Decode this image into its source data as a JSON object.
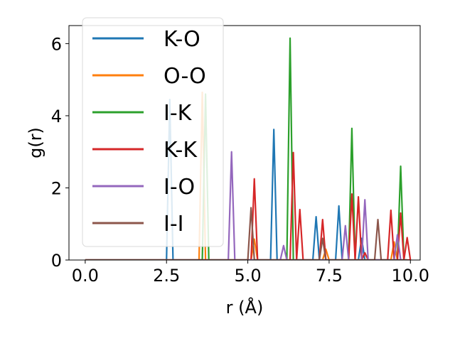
{
  "chart_data": {
    "type": "line",
    "title": "",
    "xlabel": "r (Å)",
    "ylabel": "g(r)",
    "xlim": [
      -0.5,
      10.3
    ],
    "ylim": [
      0,
      6.5
    ],
    "x_ticks": [
      0.0,
      2.5,
      5.0,
      7.5,
      10.0
    ],
    "x_tick_labels": [
      "0.0",
      "2.5",
      "5.0",
      "7.5",
      "10.0"
    ],
    "y_ticks": [
      0,
      2,
      4,
      6
    ],
    "y_tick_labels": [
      "0",
      "2",
      "4",
      "6"
    ],
    "grid": false,
    "legend_position": "upper-left",
    "x_range": [
      0.0,
      9.9
    ],
    "peak_halfwidth": 0.1,
    "series": [
      {
        "name": "K-O",
        "color": "#1f77b4",
        "peaks": [
          [
            2.6,
            4.45
          ],
          [
            5.8,
            3.62
          ],
          [
            7.1,
            1.2
          ],
          [
            7.8,
            1.5
          ],
          [
            8.5,
            0.6
          ]
        ]
      },
      {
        "name": "O-O",
        "color": "#ff7f0e",
        "peaks": [
          [
            3.6,
            4.65
          ],
          [
            5.2,
            0.58
          ],
          [
            7.4,
            0.3
          ],
          [
            9.5,
            0.5
          ]
        ]
      },
      {
        "name": "I-K",
        "color": "#2ca02c",
        "peaks": [
          [
            3.7,
            4.6
          ],
          [
            6.3,
            6.15
          ],
          [
            8.2,
            3.65
          ],
          [
            9.7,
            2.6
          ]
        ]
      },
      {
        "name": "K-K",
        "color": "#d62728",
        "peaks": [
          [
            5.2,
            2.25
          ],
          [
            6.4,
            2.98
          ],
          [
            6.6,
            1.4
          ],
          [
            7.3,
            1.12
          ],
          [
            8.2,
            1.83
          ],
          [
            8.4,
            1.75
          ],
          [
            8.6,
            0.2
          ],
          [
            9.4,
            1.38
          ],
          [
            9.7,
            1.3
          ],
          [
            9.9,
            0.62
          ]
        ]
      },
      {
        "name": "I-O",
        "color": "#9467bd",
        "peaks": [
          [
            4.5,
            3.0
          ],
          [
            6.1,
            0.4
          ],
          [
            8.0,
            0.95
          ],
          [
            8.6,
            1.67
          ],
          [
            9.6,
            0.7
          ]
        ]
      },
      {
        "name": "I-I",
        "color": "#8c564b",
        "peaks": [
          [
            5.1,
            1.45
          ],
          [
            7.3,
            0.6
          ],
          [
            9.0,
            1.12
          ]
        ]
      }
    ]
  }
}
